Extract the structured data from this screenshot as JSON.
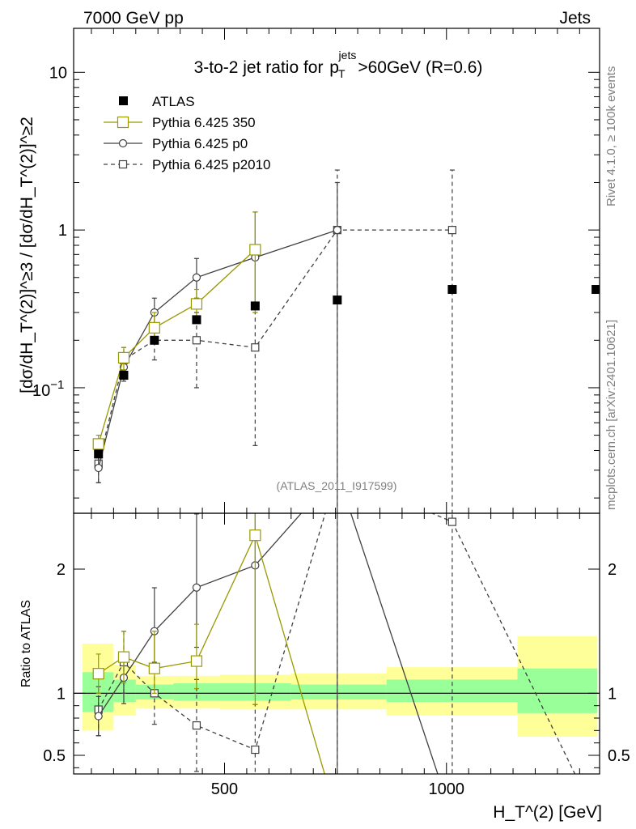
{
  "header": {
    "left": "7000 GeV pp",
    "right": "Jets"
  },
  "side": {
    "rivet": "Rivet 4.1.0, ≥ 100k events",
    "mcplots": "mcplots.cern.ch [arXiv:2401.10621]"
  },
  "chart_data": {
    "type": "scatter",
    "title": "3-to-2 jet ratio for p_T^jets > 60GeV (R=0.6)",
    "ylabel": "[dσ/dH_T^(2)]^≥3 / [dσ/dH_T^(2)]^≥2",
    "xlabel": "H_T^(2) [GeV]",
    "analysis_tag": "(ATLAS_2011_I917599)",
    "xlim": [
      160,
      1345
    ],
    "ylim": [
      0.016,
      19
    ],
    "yscale": "log",
    "y_ticks": [
      "1",
      "10"
    ],
    "y_tick_minus1": {
      "base": "10",
      "exp": "−1"
    },
    "x_ticks": [
      "500",
      "1000"
    ],
    "legend": [
      "ATLAS",
      "Pythia 6.425 350",
      "Pythia 6.425 p0",
      "Pythia 6.425 p2010"
    ],
    "ratio_ylabel": "Ratio to ATLAS",
    "ratio_ylim": [
      0.35,
      2.45
    ],
    "ratio_ticks": [
      "0.5",
      "1",
      "2"
    ],
    "series": [
      {
        "name": "ATLAS",
        "x": [
          216,
          273,
          342,
          437,
          569,
          754,
          1013,
          1337
        ],
        "y": [
          0.038,
          0.12,
          0.2,
          0.27,
          0.33,
          0.36,
          0.42,
          0.42
        ],
        "bin_edges": [
          180,
          250,
          300,
          385,
          490,
          650,
          865,
          1160,
          1340
        ]
      },
      {
        "name": "Pythia 6.425 350",
        "x": [
          216,
          273,
          342,
          437,
          569
        ],
        "y": [
          0.044,
          0.155,
          0.24,
          0.34,
          0.75
        ],
        "err_lo": [
          0.038,
          0.13,
          0.2,
          0.28,
          0.3
        ],
        "err_hi": [
          0.05,
          0.18,
          0.3,
          0.42,
          1.3
        ]
      },
      {
        "name": "Pythia 6.425 p0",
        "x": [
          216,
          273,
          342,
          437,
          569,
          754
        ],
        "y": [
          0.031,
          0.135,
          0.3,
          0.5,
          0.67,
          1.0
        ],
        "err_lo": [
          0.025,
          0.11,
          0.24,
          0.37,
          0.33,
          0.001
        ],
        "err_hi": [
          0.037,
          0.16,
          0.37,
          0.66,
          1.3,
          2.0
        ]
      },
      {
        "name": "Pythia 6.425 p2010",
        "x": [
          216,
          273,
          342,
          437,
          569,
          754,
          1013
        ],
        "y": [
          0.033,
          0.15,
          0.2,
          0.2,
          0.18,
          1.0,
          1.0
        ],
        "err_lo": [
          0.025,
          0.12,
          0.15,
          0.1,
          0.043,
          0.001,
          0.001
        ],
        "err_hi": [
          0.04,
          0.18,
          0.25,
          0.3,
          0.3,
          2.4,
          2.4
        ]
      }
    ],
    "ratio_band_green": [
      [
        0.85,
        1.17
      ],
      [
        0.93,
        1.11
      ],
      [
        0.95,
        1.07
      ],
      [
        0.94,
        1.08
      ],
      [
        0.94,
        1.08
      ],
      [
        0.95,
        1.07
      ],
      [
        0.93,
        1.11
      ],
      [
        0.84,
        1.2
      ]
    ],
    "ratio_band_yellow": [
      [
        0.7,
        1.4
      ],
      [
        0.82,
        1.23
      ],
      [
        0.88,
        1.14
      ],
      [
        0.88,
        1.14
      ],
      [
        0.87,
        1.15
      ],
      [
        0.87,
        1.16
      ],
      [
        0.82,
        1.21
      ],
      [
        0.65,
        1.46
      ]
    ]
  }
}
